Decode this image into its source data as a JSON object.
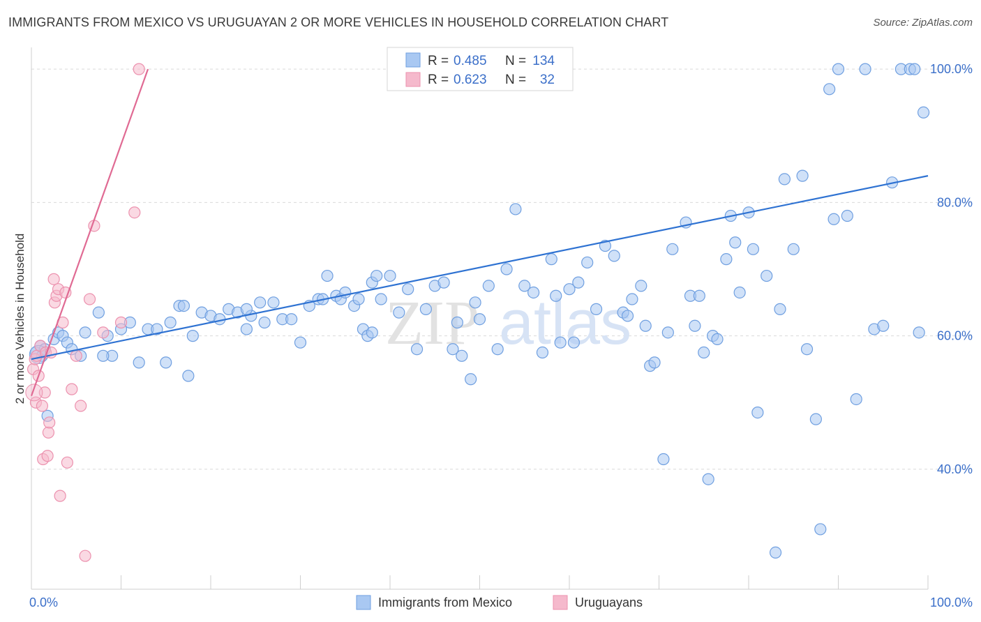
{
  "title": "IMMIGRANTS FROM MEXICO VS URUGUAYAN 2 OR MORE VEHICLES IN HOUSEHOLD CORRELATION CHART",
  "source": "Source: ZipAtlas.com",
  "watermark": {
    "part1": "ZIP",
    "part2": "atlas"
  },
  "colors": {
    "blue_fill": "#a9c8f2",
    "blue_stroke": "#6f9fe0",
    "blue_line": "#2e72d2",
    "pink_fill": "#f5b9cc",
    "pink_stroke": "#ec91ae",
    "pink_line": "#e06a93",
    "grid": "#d9d9d9",
    "tick_text": "#3b6fc9"
  },
  "legend_stats": {
    "r_label": "R =",
    "n_label": "N =",
    "rows": [
      {
        "r": "0.485",
        "n": "134"
      },
      {
        "r": "0.623",
        "n": "32"
      }
    ]
  },
  "chart_data": {
    "type": "scatter",
    "title": "IMMIGRANTS FROM MEXICO VS URUGUAYAN 2 OR MORE VEHICLES IN HOUSEHOLD CORRELATION CHART",
    "xlabel": "",
    "ylabel": "2 or more Vehicles in Household",
    "xlim": [
      0,
      100
    ],
    "ylim": [
      22,
      102
    ],
    "x_tick_labels": [
      "0.0%",
      "100.0%"
    ],
    "y_ticks": [
      40,
      60,
      80,
      100
    ],
    "y_tick_labels": [
      "40.0%",
      "60.0%",
      "80.0%",
      "100.0%"
    ],
    "legend_position": "bottom-center",
    "grid": true,
    "series": [
      {
        "name": "Immigrants from Mexico",
        "color": "#a9c8f2",
        "trend": {
          "x": [
            0,
            100
          ],
          "y": [
            56.5,
            84
          ]
        },
        "points": [
          [
            0.5,
            57.5
          ],
          [
            1.0,
            58.5
          ],
          [
            1.2,
            57.0
          ],
          [
            1.5,
            58.0
          ],
          [
            1.8,
            48.0
          ],
          [
            2.5,
            59.5
          ],
          [
            3.0,
            60.5
          ],
          [
            3.5,
            60.0
          ],
          [
            4.0,
            59.0
          ],
          [
            4.5,
            58.0
          ],
          [
            5.5,
            57.0
          ],
          [
            6.0,
            60.5
          ],
          [
            7.5,
            63.5
          ],
          [
            8.5,
            60.0
          ],
          [
            9.0,
            57.0
          ],
          [
            10.0,
            61.0
          ],
          [
            11.0,
            62.0
          ],
          [
            12.0,
            56.0
          ],
          [
            13.0,
            61.0
          ],
          [
            14.0,
            61.0
          ],
          [
            15.0,
            56.0
          ],
          [
            15.5,
            62.0
          ],
          [
            16.5,
            64.5
          ],
          [
            17.0,
            64.5
          ],
          [
            17.5,
            54.0
          ],
          [
            18.0,
            60.0
          ],
          [
            19.0,
            63.5
          ],
          [
            20.0,
            63.0
          ],
          [
            21.0,
            62.5
          ],
          [
            22.0,
            64.0
          ],
          [
            23.0,
            63.5
          ],
          [
            24.0,
            61.0
          ],
          [
            24.5,
            63.0
          ],
          [
            25.5,
            65.0
          ],
          [
            26.0,
            62.0
          ],
          [
            27.0,
            65.0
          ],
          [
            28.0,
            62.5
          ],
          [
            29.0,
            62.5
          ],
          [
            30.0,
            59.0
          ],
          [
            31.0,
            64.5
          ],
          [
            32.0,
            65.5
          ],
          [
            32.5,
            65.5
          ],
          [
            33.0,
            69.0
          ],
          [
            34.0,
            66.0
          ],
          [
            34.5,
            65.5
          ],
          [
            35.0,
            66.5
          ],
          [
            36.0,
            64.5
          ],
          [
            36.5,
            65.5
          ],
          [
            37.0,
            61.0
          ],
          [
            37.5,
            60.0
          ],
          [
            38.0,
            68.0
          ],
          [
            38.5,
            69.0
          ],
          [
            39.0,
            65.5
          ],
          [
            40.0,
            69.0
          ],
          [
            41.0,
            63.5
          ],
          [
            42.0,
            67.0
          ],
          [
            43.0,
            58.0
          ],
          [
            44.0,
            64.0
          ],
          [
            45.0,
            67.5
          ],
          [
            46.0,
            68.0
          ],
          [
            47.0,
            58.0
          ],
          [
            48.0,
            57.0
          ],
          [
            49.0,
            53.5
          ],
          [
            49.5,
            65.0
          ],
          [
            50.0,
            62.5
          ],
          [
            51.0,
            67.5
          ],
          [
            52.0,
            58.0
          ],
          [
            53.0,
            70.0
          ],
          [
            54.0,
            79.0
          ],
          [
            55.0,
            67.5
          ],
          [
            56.0,
            66.5
          ],
          [
            57.0,
            57.5
          ],
          [
            58.0,
            71.5
          ],
          [
            58.5,
            66.0
          ],
          [
            59.0,
            59.0
          ],
          [
            60.0,
            67.0
          ],
          [
            61.0,
            68.0
          ],
          [
            62.0,
            71.0
          ],
          [
            63.0,
            64.0
          ],
          [
            64.0,
            73.5
          ],
          [
            65.0,
            72.0
          ],
          [
            66.0,
            63.5
          ],
          [
            66.5,
            63.0
          ],
          [
            67.0,
            65.5
          ],
          [
            68.0,
            67.5
          ],
          [
            69.0,
            55.5
          ],
          [
            69.5,
            56.0
          ],
          [
            70.5,
            41.5
          ],
          [
            71.0,
            60.5
          ],
          [
            71.5,
            73.0
          ],
          [
            73.0,
            77.0
          ],
          [
            73.5,
            66.0
          ],
          [
            74.0,
            61.5
          ],
          [
            75.0,
            57.5
          ],
          [
            75.5,
            38.5
          ],
          [
            76.0,
            60.0
          ],
          [
            76.5,
            59.5
          ],
          [
            77.5,
            71.5
          ],
          [
            78.0,
            78.0
          ],
          [
            78.5,
            74.0
          ],
          [
            79.0,
            66.5
          ],
          [
            80.0,
            78.5
          ],
          [
            80.5,
            73.0
          ],
          [
            81.0,
            48.5
          ],
          [
            82.0,
            69.0
          ],
          [
            83.0,
            27.5
          ],
          [
            83.5,
            64.0
          ],
          [
            84.0,
            83.5
          ],
          [
            85.0,
            73.0
          ],
          [
            86.0,
            84.0
          ],
          [
            86.5,
            58.0
          ],
          [
            87.5,
            47.5
          ],
          [
            88.0,
            31.0
          ],
          [
            89.0,
            97.0
          ],
          [
            89.5,
            77.5
          ],
          [
            90.0,
            100.0
          ],
          [
            91.0,
            78.0
          ],
          [
            92.0,
            50.5
          ],
          [
            93.0,
            100.0
          ],
          [
            94.0,
            61.0
          ],
          [
            95.0,
            61.5
          ],
          [
            96.0,
            83.0
          ],
          [
            97.0,
            100.0
          ],
          [
            98.0,
            100.0
          ],
          [
            98.5,
            100.0
          ],
          [
            99.0,
            60.5
          ],
          [
            99.5,
            93.5
          ],
          [
            60.5,
            59.0
          ],
          [
            68.5,
            61.5
          ],
          [
            74.5,
            66.0
          ],
          [
            47.5,
            62.0
          ],
          [
            38.0,
            60.5
          ],
          [
            24.0,
            64.0
          ],
          [
            8.0,
            57.0
          ]
        ]
      },
      {
        "name": "Uruguayans",
        "color": "#f5b9cc",
        "trend": {
          "x": [
            0,
            13
          ],
          "y": [
            51.0,
            100
          ]
        },
        "points": [
          [
            0.2,
            55.0
          ],
          [
            0.4,
            56.5
          ],
          [
            0.5,
            50.0
          ],
          [
            0.6,
            57.0
          ],
          [
            0.8,
            54.0
          ],
          [
            1.0,
            58.5
          ],
          [
            1.2,
            49.5
          ],
          [
            1.3,
            41.5
          ],
          [
            1.5,
            51.5
          ],
          [
            1.6,
            57.5
          ],
          [
            1.8,
            42.0
          ],
          [
            1.9,
            45.5
          ],
          [
            2.0,
            47.0
          ],
          [
            2.2,
            57.5
          ],
          [
            2.5,
            68.5
          ],
          [
            2.6,
            65.0
          ],
          [
            2.8,
            66.0
          ],
          [
            3.0,
            67.0
          ],
          [
            3.2,
            36.0
          ],
          [
            3.5,
            62.0
          ],
          [
            3.8,
            66.5
          ],
          [
            4.0,
            41.0
          ],
          [
            4.5,
            52.0
          ],
          [
            5.0,
            57.0
          ],
          [
            5.5,
            49.5
          ],
          [
            6.0,
            27.0
          ],
          [
            6.5,
            65.5
          ],
          [
            7.0,
            76.5
          ],
          [
            8.0,
            60.5
          ],
          [
            10.0,
            62.0
          ],
          [
            11.5,
            78.5
          ],
          [
            12.0,
            100.0
          ]
        ]
      }
    ]
  }
}
